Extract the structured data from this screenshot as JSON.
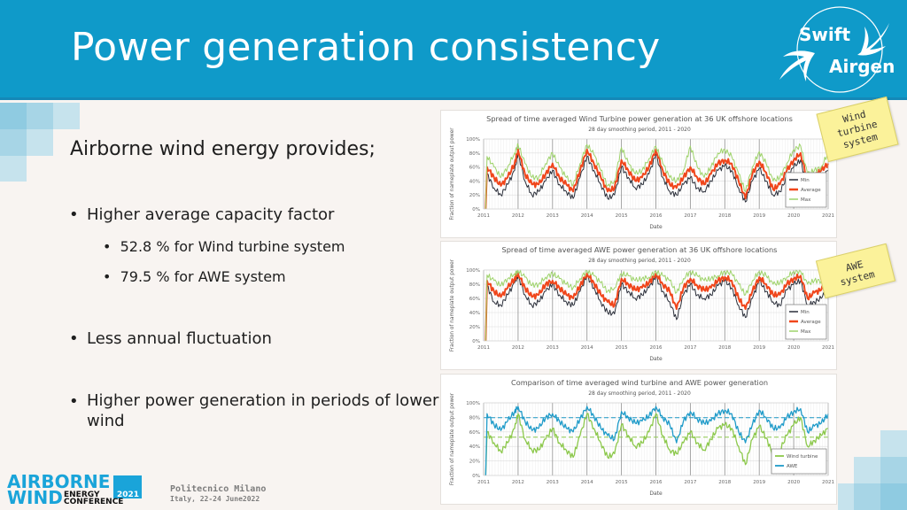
{
  "slide": {
    "title": "Power generation consistency",
    "logo": {
      "line1": "Swift",
      "line2": "Airgen",
      "icon": "swift-bird-icon"
    },
    "intro": "Airborne wind energy provides;",
    "bullets": [
      {
        "text": "Higher average capacity factor",
        "sub": [
          "52.8 % for Wind turbine system",
          "79.5 % for AWE system"
        ]
      },
      {
        "text": "Less annual fluctuation",
        "sub": []
      },
      {
        "text": "Higher power generation in periods of lower wind",
        "sub": []
      }
    ],
    "notes": [
      {
        "lines": [
          "Wind",
          "turbine",
          "system"
        ]
      },
      {
        "lines": [
          "AWE",
          "system"
        ]
      }
    ],
    "footer": {
      "conf_line1": "AIRBORNE",
      "conf_line2": "WIND",
      "conf_energy": "ENERGY",
      "conf_year": "2021",
      "conf_conference": "CONFERENCE",
      "venue_line1": "Politecnico Milano",
      "venue_line2": "Italy, 22-24 June2022"
    },
    "colors": {
      "header": "#0f9ac9",
      "min": "#2b2f3a",
      "average": "#f0461b",
      "max": "#9ed36a",
      "wind_turbine": "#8cc84b",
      "awe": "#1f9bc9"
    }
  },
  "chart_data": [
    {
      "type": "line",
      "title": "Spread of time averaged Wind Turbine power generation at 36 UK offshore locations",
      "subtitle": "28 day smoothing period, 2011 - 2020",
      "xlabel": "Date",
      "ylabel": "Fraction of nameplate output power",
      "xlim": [
        2011,
        2021
      ],
      "ylim": [
        0,
        100
      ],
      "x_ticks": [
        "2011",
        "2012",
        "2013",
        "2014",
        "2015",
        "2016",
        "2017",
        "2018",
        "2019",
        "2020",
        "2021"
      ],
      "y_ticks": [
        "0%",
        "20%",
        "40%",
        "60%",
        "80%",
        "100%"
      ],
      "legend": [
        "Min",
        "Average",
        "Max"
      ],
      "legend_position": "bottom-right",
      "grid": true,
      "x": [
        2011.1,
        2011.3,
        2011.5,
        2011.7,
        2011.9,
        2012.0,
        2012.2,
        2012.4,
        2012.6,
        2012.8,
        2013.0,
        2013.2,
        2013.4,
        2013.6,
        2013.8,
        2014.0,
        2014.2,
        2014.4,
        2014.6,
        2014.8,
        2015.0,
        2015.2,
        2015.4,
        2015.6,
        2015.8,
        2016.0,
        2016.2,
        2016.4,
        2016.6,
        2016.8,
        2017.0,
        2017.2,
        2017.4,
        2017.6,
        2017.8,
        2018.0,
        2018.2,
        2018.4,
        2018.6,
        2018.8,
        2019.0,
        2019.2,
        2019.4,
        2019.6,
        2019.8,
        2020.0,
        2020.2,
        2020.4,
        2020.6,
        2020.8,
        2021.0
      ],
      "series": [
        {
          "name": "Min",
          "values": [
            50,
            30,
            20,
            35,
            55,
            80,
            40,
            20,
            25,
            40,
            55,
            35,
            25,
            15,
            45,
            75,
            55,
            35,
            15,
            20,
            60,
            45,
            30,
            35,
            50,
            78,
            45,
            25,
            20,
            35,
            45,
            30,
            25,
            40,
            55,
            62,
            55,
            30,
            10,
            40,
            58,
            40,
            20,
            25,
            45,
            60,
            70,
            30,
            40,
            45,
            55
          ]
        },
        {
          "name": "Average",
          "values": [
            60,
            45,
            33,
            45,
            65,
            85,
            50,
            35,
            35,
            50,
            65,
            45,
            35,
            25,
            55,
            85,
            65,
            45,
            25,
            30,
            70,
            55,
            40,
            45,
            60,
            85,
            55,
            35,
            30,
            45,
            60,
            45,
            35,
            50,
            65,
            70,
            65,
            40,
            15,
            50,
            68,
            52,
            28,
            35,
            55,
            70,
            80,
            40,
            48,
            55,
            65
          ]
        },
        {
          "name": "Max",
          "values": [
            75,
            60,
            45,
            60,
            80,
            92,
            65,
            45,
            45,
            65,
            80,
            60,
            45,
            35,
            65,
            92,
            78,
            55,
            33,
            40,
            88,
            65,
            50,
            55,
            72,
            90,
            65,
            45,
            40,
            55,
            90,
            60,
            45,
            60,
            80,
            85,
            75,
            50,
            25,
            60,
            82,
            65,
            40,
            45,
            65,
            85,
            90,
            50,
            55,
            60,
            80
          ]
        }
      ]
    },
    {
      "type": "line",
      "title": "Spread of time averaged AWE power generation at 36 UK offshore locations",
      "subtitle": "28 day smoothing period, 2011 - 2020",
      "xlabel": "Date",
      "ylabel": "Fraction of nameplate output power",
      "xlim": [
        2011,
        2021
      ],
      "ylim": [
        0,
        100
      ],
      "x_ticks": [
        "2011",
        "2012",
        "2013",
        "2014",
        "2015",
        "2016",
        "2017",
        "2018",
        "2019",
        "2020",
        "2021"
      ],
      "y_ticks": [
        "0%",
        "20%",
        "40%",
        "60%",
        "80%",
        "100%"
      ],
      "legend": [
        "Min",
        "Average",
        "Max"
      ],
      "legend_position": "bottom-right",
      "grid": true,
      "x": [
        2011.1,
        2011.3,
        2011.5,
        2011.7,
        2011.9,
        2012.0,
        2012.2,
        2012.4,
        2012.6,
        2012.8,
        2013.0,
        2013.2,
        2013.4,
        2013.6,
        2013.8,
        2014.0,
        2014.2,
        2014.4,
        2014.6,
        2014.8,
        2015.0,
        2015.2,
        2015.4,
        2015.6,
        2015.8,
        2016.0,
        2016.2,
        2016.4,
        2016.6,
        2016.8,
        2017.0,
        2017.2,
        2017.4,
        2017.6,
        2017.8,
        2018.0,
        2018.2,
        2018.4,
        2018.6,
        2018.8,
        2019.0,
        2019.2,
        2019.4,
        2019.6,
        2019.8,
        2020.0,
        2020.2,
        2020.4,
        2020.6,
        2020.8,
        2021.0
      ],
      "series": [
        {
          "name": "Min",
          "values": [
            78,
            55,
            50,
            65,
            82,
            92,
            65,
            50,
            55,
            70,
            80,
            65,
            55,
            50,
            70,
            92,
            75,
            55,
            40,
            38,
            80,
            70,
            60,
            65,
            75,
            90,
            70,
            55,
            30,
            65,
            80,
            65,
            60,
            65,
            78,
            85,
            75,
            50,
            33,
            60,
            85,
            70,
            55,
            50,
            72,
            80,
            85,
            50,
            55,
            60,
            75
          ]
        },
        {
          "name": "Average",
          "values": [
            85,
            70,
            62,
            75,
            88,
            95,
            75,
            62,
            65,
            80,
            85,
            75,
            65,
            60,
            78,
            95,
            82,
            65,
            55,
            50,
            88,
            80,
            72,
            75,
            82,
            95,
            80,
            70,
            45,
            75,
            88,
            78,
            72,
            75,
            85,
            90,
            85,
            60,
            45,
            70,
            90,
            80,
            65,
            65,
            80,
            88,
            92,
            60,
            68,
            72,
            85
          ]
        },
        {
          "name": "Max",
          "values": [
            93,
            85,
            78,
            88,
            95,
            99,
            90,
            78,
            80,
            90,
            95,
            88,
            80,
            75,
            88,
            99,
            92,
            82,
            70,
            75,
            95,
            92,
            85,
            88,
            90,
            98,
            92,
            85,
            68,
            88,
            98,
            92,
            85,
            88,
            92,
            98,
            95,
            80,
            65,
            85,
            98,
            92,
            80,
            82,
            90,
            98,
            98,
            80,
            85,
            85,
            92
          ]
        }
      ]
    },
    {
      "type": "line",
      "title": "Comparison of time averaged wind turbine and AWE power generation",
      "subtitle": "28 day smoothing period, 2011 - 2020",
      "xlabel": "Date",
      "ylabel": "Fraction of nameplate output power",
      "xlim": [
        2011,
        2021
      ],
      "ylim": [
        0,
        100
      ],
      "x_ticks": [
        "2011",
        "2012",
        "2013",
        "2014",
        "2015",
        "2016",
        "2017",
        "2018",
        "2019",
        "2020",
        "2021"
      ],
      "y_ticks": [
        "0%",
        "20%",
        "40%",
        "60%",
        "80%",
        "100%"
      ],
      "legend": [
        "Wind turbine",
        "AWE"
      ],
      "legend_position": "bottom-right",
      "grid": true,
      "reference_lines": [
        {
          "series": "Wind turbine",
          "value": 52.8,
          "style": "dashed"
        },
        {
          "series": "AWE",
          "value": 79.5,
          "style": "dashed"
        }
      ],
      "x": [
        2011.1,
        2011.3,
        2011.5,
        2011.7,
        2011.9,
        2012.0,
        2012.2,
        2012.4,
        2012.6,
        2012.8,
        2013.0,
        2013.2,
        2013.4,
        2013.6,
        2013.8,
        2014.0,
        2014.2,
        2014.4,
        2014.6,
        2014.8,
        2015.0,
        2015.2,
        2015.4,
        2015.6,
        2015.8,
        2016.0,
        2016.2,
        2016.4,
        2016.6,
        2016.8,
        2017.0,
        2017.2,
        2017.4,
        2017.6,
        2017.8,
        2018.0,
        2018.2,
        2018.4,
        2018.6,
        2018.8,
        2019.0,
        2019.2,
        2019.4,
        2019.6,
        2019.8,
        2020.0,
        2020.2,
        2020.4,
        2020.6,
        2020.8,
        2021.0
      ],
      "series": [
        {
          "name": "Wind turbine",
          "values": [
            60,
            45,
            33,
            45,
            65,
            85,
            50,
            35,
            35,
            50,
            65,
            45,
            35,
            25,
            55,
            85,
            65,
            45,
            25,
            30,
            70,
            55,
            40,
            45,
            60,
            85,
            55,
            35,
            30,
            45,
            60,
            45,
            35,
            50,
            65,
            70,
            65,
            40,
            15,
            50,
            68,
            52,
            28,
            35,
            55,
            70,
            80,
            40,
            48,
            55,
            65
          ]
        },
        {
          "name": "AWE",
          "values": [
            85,
            70,
            62,
            75,
            88,
            95,
            75,
            62,
            65,
            80,
            85,
            75,
            65,
            60,
            78,
            95,
            82,
            65,
            55,
            50,
            88,
            80,
            72,
            75,
            82,
            95,
            80,
            70,
            45,
            75,
            88,
            78,
            72,
            75,
            85,
            90,
            85,
            60,
            45,
            70,
            90,
            80,
            65,
            65,
            80,
            88,
            92,
            60,
            68,
            72,
            85
          ]
        }
      ]
    }
  ]
}
